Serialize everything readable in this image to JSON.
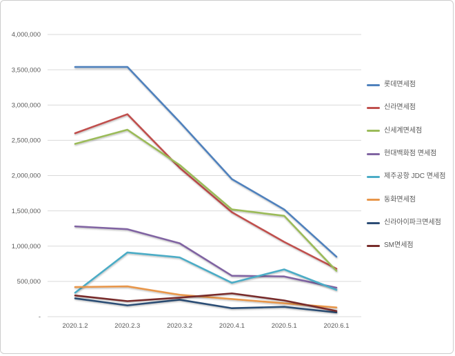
{
  "frame": {
    "background": "#ffffff",
    "border_color": "#cccccc"
  },
  "chart_data": {
    "type": "line",
    "title": "",
    "xlabel": "",
    "ylabel": "",
    "categories": [
      "2020.1.2",
      "2020.2.3",
      "2020.3.2",
      "2020.4.1",
      "2020.5.1",
      "2020.6.1"
    ],
    "series": [
      {
        "name": "롯데면세점",
        "color": "#4F81BD",
        "values": [
          3540000,
          3540000,
          2760000,
          1950000,
          1520000,
          850000
        ]
      },
      {
        "name": "신라면세점",
        "color": "#C0504D",
        "values": [
          2600000,
          2870000,
          2110000,
          1480000,
          1060000,
          680000
        ]
      },
      {
        "name": "신세계면세점",
        "color": "#9BBB59",
        "values": [
          2450000,
          2650000,
          2150000,
          1520000,
          1430000,
          650000
        ]
      },
      {
        "name": "현대백화점 면세점",
        "color": "#8064A2",
        "values": [
          1280000,
          1240000,
          1040000,
          580000,
          570000,
          410000
        ]
      },
      {
        "name": "제주공항 JDC 면세점",
        "color": "#4BACC6",
        "values": [
          340000,
          910000,
          840000,
          480000,
          670000,
          380000
        ]
      },
      {
        "name": "동화면세점",
        "color": "#E8964A",
        "values": [
          420000,
          430000,
          310000,
          250000,
          190000,
          130000
        ]
      },
      {
        "name": "신라아이파크면세점",
        "color": "#2C4D75",
        "values": [
          260000,
          160000,
          240000,
          120000,
          140000,
          60000
        ]
      },
      {
        "name": "SM면세점",
        "color": "#772C2A",
        "values": [
          300000,
          220000,
          270000,
          330000,
          230000,
          80000
        ]
      }
    ],
    "ylim": [
      0,
      4000000
    ],
    "ytick_interval": 500000,
    "ytick_labels_top_to_bottom": [
      "4,000,000",
      "3,500,000",
      "3,000,000",
      "2,500,000",
      "2,000,000",
      "1,500,000",
      "1,000,000",
      "500,000",
      "-"
    ],
    "grid": "horizontal-only",
    "gridline_color": "#d9d9d9",
    "axis_text_color": "#595959",
    "legend_position": "right"
  }
}
